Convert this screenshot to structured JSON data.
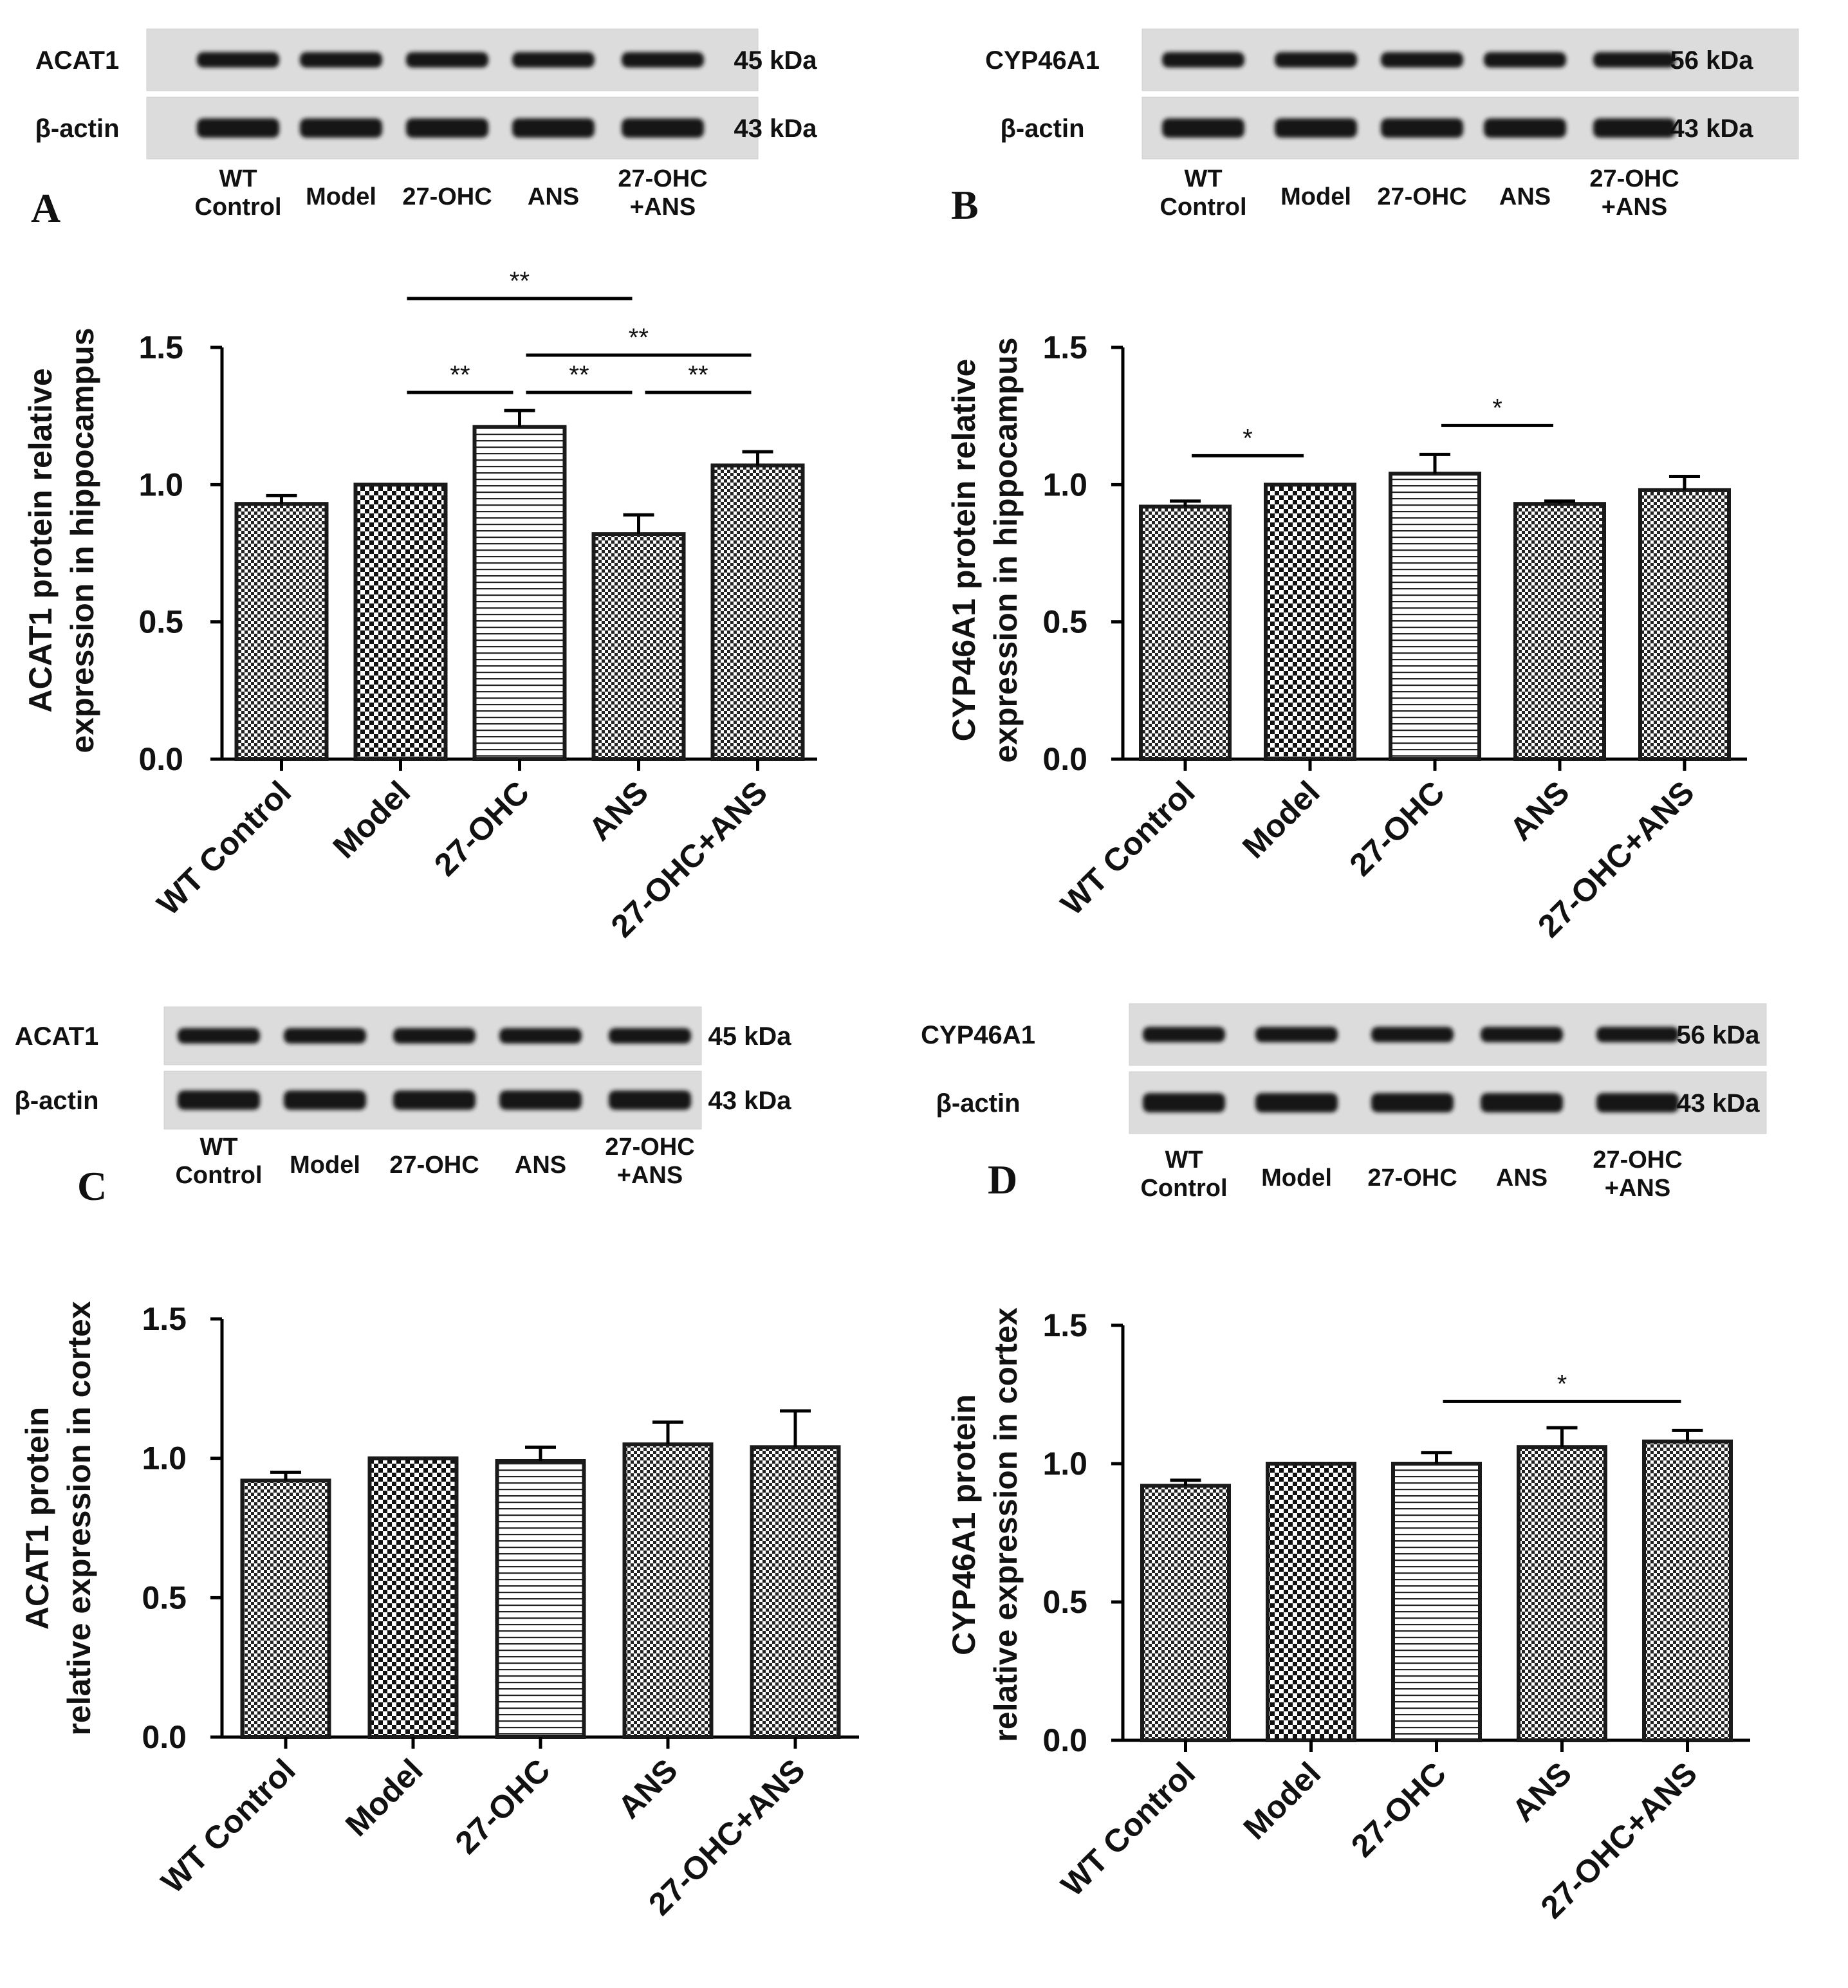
{
  "colors": {
    "axis": "#000000",
    "bar_fill": "#ffffff",
    "bar_stroke": "#1a1a1a",
    "blot_bg": "#dcdcdc",
    "blot_band": "#141414"
  },
  "categories": [
    "WT Control",
    "Model",
    "27-OHC",
    "ANS",
    "27-OHC+ANS"
  ],
  "bar_patterns": [
    "fine-checker",
    "checker",
    "horizontal-lines",
    "fine-checker",
    "fine-checker"
  ],
  "blot_lane_labels": [
    {
      "line1": "WT",
      "line2": "Control"
    },
    {
      "line1": "Model",
      "line2": ""
    },
    {
      "line1": "27-OHC",
      "line2": ""
    },
    {
      "line1": "ANS",
      "line2": ""
    },
    {
      "line1": "27-OHC",
      "line2": "+ANS"
    }
  ],
  "panels": [
    {
      "letter": "A",
      "blot": {
        "rows": [
          {
            "protein": "ACAT1",
            "kda": "45 kDa"
          },
          {
            "protein": "β-actin",
            "kda": "43 kDa"
          }
        ]
      },
      "chart_data": {
        "type": "bar",
        "categories": [
          "WT Control",
          "Model",
          "27-OHC",
          "ANS",
          "27-OHC+ANS"
        ],
        "values": [
          0.93,
          1.0,
          1.21,
          0.82,
          1.07
        ],
        "errors": [
          0.03,
          0.0,
          0.06,
          0.07,
          0.05
        ],
        "ylabel_line1": "ACAT1  protein relative",
        "ylabel_line2": "expression in hippocampus",
        "ylim": [
          0,
          1.5
        ],
        "yticks": [
          "0.0",
          "0.5",
          "1.0",
          "1.5"
        ],
        "significance": [
          {
            "from": 1,
            "to": 3,
            "label": "**",
            "level": 3
          },
          {
            "from": 2,
            "to": 4,
            "label": "**",
            "level": 2
          },
          {
            "from": 1,
            "to": 2,
            "label": "**",
            "level": 1
          },
          {
            "from": 2,
            "to": 3,
            "label": "**",
            "level": 1
          },
          {
            "from": 3,
            "to": 4,
            "label": "**",
            "level": 1
          }
        ]
      }
    },
    {
      "letter": "B",
      "blot": {
        "rows": [
          {
            "protein": "CYP46A1",
            "kda": "56 kDa"
          },
          {
            "protein": "β-actin",
            "kda": "43 kDa"
          }
        ]
      },
      "chart_data": {
        "type": "bar",
        "categories": [
          "WT Control",
          "Model",
          "27-OHC",
          "ANS",
          "27-OHC+ANS"
        ],
        "values": [
          0.92,
          1.0,
          1.04,
          0.93,
          0.98
        ],
        "errors": [
          0.02,
          0.0,
          0.07,
          0.01,
          0.05
        ],
        "ylabel_line1": "CYP46A1  protein relative",
        "ylabel_line2": "expression in hippocampus",
        "ylim": [
          0,
          1.5
        ],
        "yticks": [
          "0.0",
          "0.5",
          "1.0",
          "1.5"
        ],
        "significance": [
          {
            "from": 0,
            "to": 1,
            "label": "*",
            "level": 1
          },
          {
            "from": 2,
            "to": 3,
            "label": "*",
            "level": 1
          }
        ]
      }
    },
    {
      "letter": "C",
      "blot": {
        "rows": [
          {
            "protein": "ACAT1",
            "kda": "45 kDa"
          },
          {
            "protein": "β-actin",
            "kda": "43 kDa"
          }
        ]
      },
      "chart_data": {
        "type": "bar",
        "categories": [
          "WT Control",
          "Model",
          "27-OHC",
          "ANS",
          "27-OHC+ANS"
        ],
        "values": [
          0.92,
          1.0,
          0.99,
          1.05,
          1.04
        ],
        "errors": [
          0.03,
          0.0,
          0.05,
          0.08,
          0.13
        ],
        "ylabel_line1": "ACAT1  protein",
        "ylabel_line2": "relative expression in cortex",
        "ylim": [
          0,
          1.5
        ],
        "yticks": [
          "0.0",
          "0.5",
          "1.0",
          "1.5"
        ],
        "significance": []
      }
    },
    {
      "letter": "D",
      "blot": {
        "rows": [
          {
            "protein": "CYP46A1",
            "kda": "56 kDa"
          },
          {
            "protein": "β-actin",
            "kda": "43 kDa"
          }
        ]
      },
      "chart_data": {
        "type": "bar",
        "categories": [
          "WT Control",
          "Model",
          "27-OHC",
          "ANS",
          "27-OHC+ANS"
        ],
        "values": [
          0.92,
          1.0,
          1.0,
          1.06,
          1.08
        ],
        "errors": [
          0.02,
          0.0,
          0.04,
          0.07,
          0.04
        ],
        "ylabel_line1": "CYP46A1  protein",
        "ylabel_line2": "relative expression in cortex",
        "ylim": [
          0,
          1.5
        ],
        "yticks": [
          "0.0",
          "0.5",
          "1.0",
          "1.5"
        ],
        "significance": [
          {
            "from": 2,
            "to": 4,
            "label": "*",
            "level": 1
          }
        ]
      }
    }
  ]
}
